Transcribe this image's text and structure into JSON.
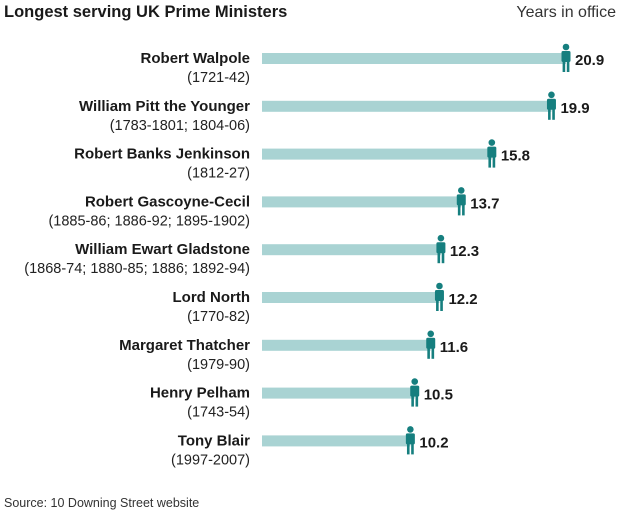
{
  "colors": {
    "bar": "#a9d3d3",
    "icon": "#167f7f"
  },
  "chart_data": {
    "type": "bar",
    "orientation": "horizontal",
    "title": "Longest serving UK Prime Ministers",
    "unit_label": "Years in office",
    "source": "Source: 10 Downing Street website",
    "xlim": [
      0,
      20.9
    ],
    "grid": false,
    "legend": "none",
    "marker_icon": "person-icon",
    "categories": [
      {
        "name": "Robert Walpole",
        "years": "(1721-42)",
        "value": 20.9,
        "value_label": "20.9"
      },
      {
        "name": "William Pitt the Younger",
        "years": "(1783-1801; 1804-06)",
        "value": 19.9,
        "value_label": "19.9"
      },
      {
        "name": "Robert Banks Jenkinson",
        "years": "(1812-27)",
        "value": 15.8,
        "value_label": "15.8"
      },
      {
        "name": "Robert Gascoyne-Cecil",
        "years": "(1885-86; 1886-92; 1895-1902)",
        "value": 13.7,
        "value_label": "13.7"
      },
      {
        "name": "William Ewart Gladstone",
        "years": "(1868-74; 1880-85; 1886; 1892-94)",
        "value": 12.3,
        "value_label": "12.3"
      },
      {
        "name": "Lord North",
        "years": "(1770-82)",
        "value": 12.2,
        "value_label": "12.2"
      },
      {
        "name": "Margaret Thatcher",
        "years": "(1979-90)",
        "value": 11.6,
        "value_label": "11.6"
      },
      {
        "name": "Henry Pelham",
        "years": "(1743-54)",
        "value": 10.5,
        "value_label": "10.5"
      },
      {
        "name": "Tony Blair",
        "years": "(1997-2007)",
        "value": 10.2,
        "value_label": "10.2"
      }
    ]
  }
}
